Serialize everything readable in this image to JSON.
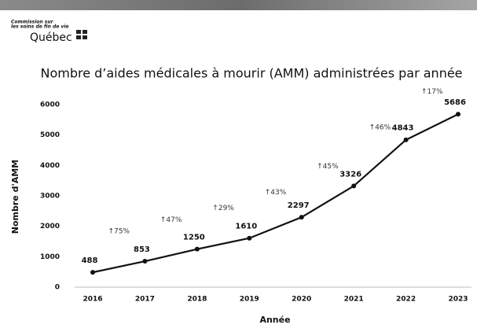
{
  "header": {
    "org_line1": "Commission sur",
    "org_line2": "les soins de fin de vie",
    "name": "Québec"
  },
  "chart_data": {
    "type": "line",
    "title": "Nombre d’aides médicales à mourir (AMM) administrées par année",
    "x_label": "Année",
    "y_label": "Nombre d'AMM",
    "categories": [
      "2016",
      "2017",
      "2018",
      "2019",
      "2020",
      "2021",
      "2022",
      "2023"
    ],
    "values": [
      488,
      853,
      1250,
      1610,
      2297,
      3326,
      4843,
      5686
    ],
    "annotations": [
      "↑75%",
      "↑47%",
      "↑29%",
      "↑43%",
      "↑45%",
      "↑46%",
      "↑17%"
    ],
    "color": "#111111",
    "ylim": [
      0,
      6000
    ],
    "yticks": [
      0,
      1000,
      2000,
      3000,
      4000,
      5000,
      6000
    ],
    "grid": false
  }
}
